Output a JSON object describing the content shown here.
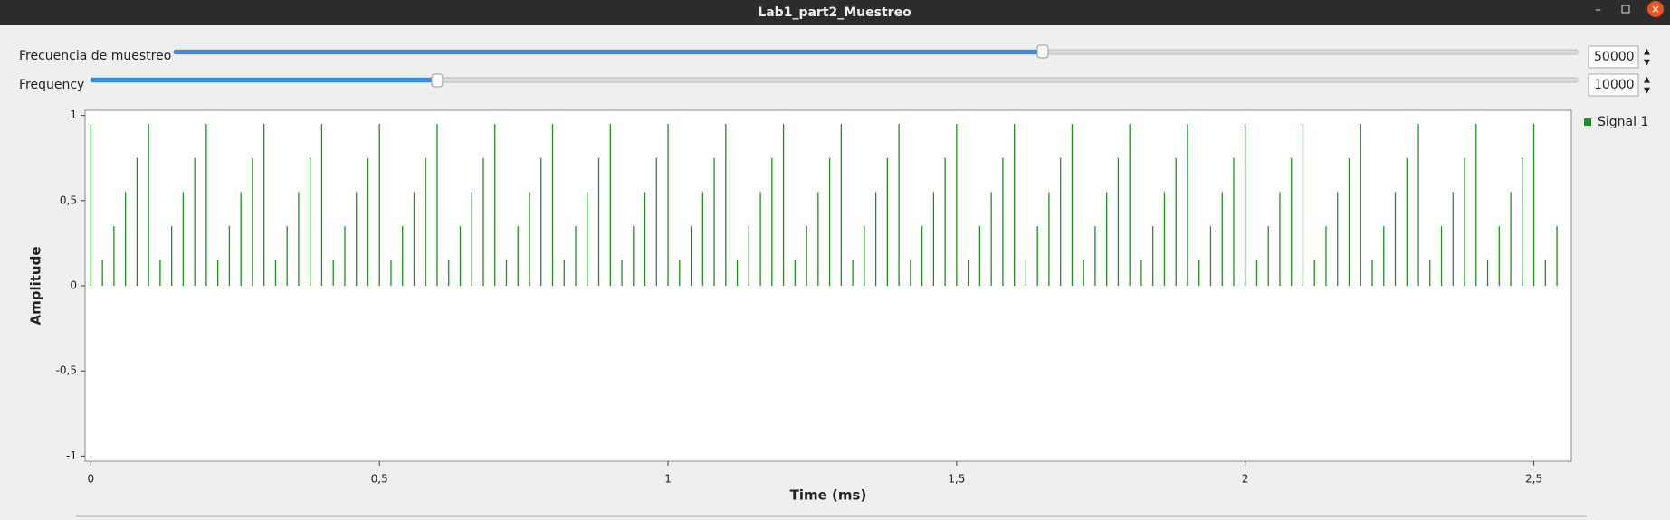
{
  "window": {
    "title": "Lab1_part2_Muestreo"
  },
  "controls": [
    {
      "label": "Frecuencia de muestreo",
      "value": 50000
    },
    {
      "label": "Frequency",
      "value": 10000
    }
  ],
  "chart_data": {
    "type": "stem",
    "xlabel": "Time (ms)",
    "ylabel": "Amplitude",
    "series": [
      {
        "name": "Signal 1",
        "color": "#1f8f1f",
        "x": [
          0,
          0.02,
          0.04,
          0.06,
          0.08,
          0.1,
          0.12,
          0.14,
          0.16,
          0.18,
          0.2,
          0.22,
          0.24,
          0.26,
          0.28,
          0.3,
          0.32,
          0.34,
          0.36,
          0.38,
          0.4,
          0.42,
          0.44,
          0.46,
          0.48,
          0.5,
          0.52,
          0.54,
          0.56,
          0.58,
          0.6,
          0.62,
          0.64,
          0.66,
          0.68,
          0.7,
          0.72,
          0.74,
          0.76,
          0.78,
          0.8,
          0.82,
          0.84,
          0.86,
          0.88,
          0.9,
          0.92,
          0.94,
          0.96,
          0.98,
          1,
          1.02,
          1.04,
          1.06,
          1.08,
          1.1,
          1.12,
          1.14,
          1.16,
          1.18,
          1.2,
          1.22,
          1.24,
          1.26,
          1.28,
          1.3,
          1.32,
          1.34,
          1.36,
          1.38,
          1.4,
          1.42,
          1.44,
          1.46,
          1.48,
          1.5,
          1.52,
          1.54,
          1.56,
          1.58,
          1.6,
          1.62,
          1.64,
          1.66,
          1.68,
          1.7,
          1.72,
          1.74,
          1.76,
          1.78,
          1.8,
          1.82,
          1.84,
          1.86,
          1.88,
          1.9,
          1.92,
          1.94,
          1.96,
          1.98,
          2,
          2.02,
          2.04,
          2.06,
          2.08,
          2.1,
          2.12,
          2.14,
          2.16,
          2.18,
          2.2,
          2.22,
          2.24,
          2.26,
          2.28,
          2.3,
          2.32,
          2.34,
          2.36,
          2.38,
          2.4,
          2.42,
          2.44,
          2.46,
          2.48,
          2.5,
          2.52,
          2.54
        ],
        "values": [
          0.95,
          0.15,
          0.35,
          0.55,
          0.75,
          0.95,
          0.15,
          0.35,
          0.55,
          0.75,
          0.95,
          0.15,
          0.35,
          0.55,
          0.75,
          0.95,
          0.15,
          0.35,
          0.55,
          0.75,
          0.95,
          0.15,
          0.35,
          0.55,
          0.75,
          0.95,
          0.15,
          0.35,
          0.55,
          0.75,
          0.95,
          0.15,
          0.35,
          0.55,
          0.75,
          0.95,
          0.15,
          0.35,
          0.55,
          0.75,
          0.95,
          0.15,
          0.35,
          0.55,
          0.75,
          0.95,
          0.15,
          0.35,
          0.55,
          0.75,
          0.95,
          0.15,
          0.35,
          0.55,
          0.75,
          0.95,
          0.15,
          0.35,
          0.55,
          0.75,
          0.95,
          0.15,
          0.35,
          0.55,
          0.75,
          0.95,
          0.15,
          0.35,
          0.55,
          0.75,
          0.95,
          0.15,
          0.35,
          0.55,
          0.75,
          0.95,
          0.15,
          0.35,
          0.55,
          0.75,
          0.95,
          0.15,
          0.35,
          0.55,
          0.75,
          0.95,
          0.15,
          0.35,
          0.55,
          0.75,
          0.95,
          0.15,
          0.35,
          0.55,
          0.75,
          0.95,
          0.15,
          0.35,
          0.55,
          0.75,
          0.95,
          0.15,
          0.35,
          0.55,
          0.75,
          0.95,
          0.15,
          0.35,
          0.55,
          0.75,
          0.95,
          0.15,
          0.35,
          0.55,
          0.75,
          0.95,
          0.15,
          0.35,
          0.55,
          0.75,
          0.95,
          0.15,
          0.35,
          0.55,
          0.75,
          0.95,
          0.15,
          0.35
        ]
      }
    ],
    "xlim": [
      -0.01,
      2.565
    ],
    "ylim": [
      -1.03,
      1.03
    ],
    "xticks": [
      0,
      {
        "value": 0.5,
        "label": "0,5"
      },
      1,
      {
        "value": 1.5,
        "label": "1,5"
      },
      2,
      {
        "value": 2.5,
        "label": "2,5"
      }
    ],
    "yticks": [
      -1,
      {
        "value": -0.5,
        "label": "-0,5"
      },
      0,
      {
        "value": 0.5,
        "label": "0,5"
      },
      1
    ],
    "legend": "top-right"
  }
}
